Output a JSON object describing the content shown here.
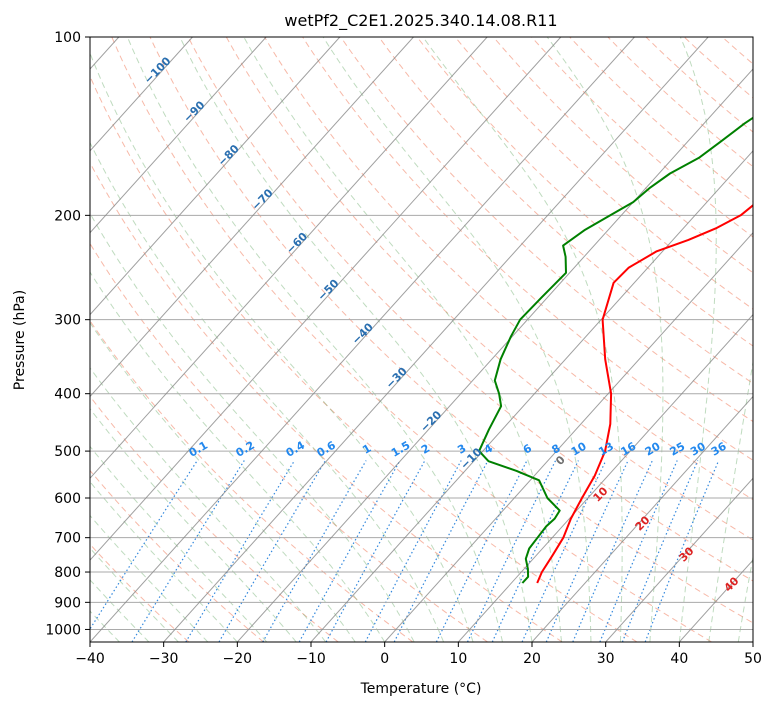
{
  "chart_data": {
    "type": "line",
    "title": "wetPf2_C2E1.2025.340.14.08.R11",
    "xlabel": "Temperature (°C)",
    "ylabel": "Pressure (hPa)",
    "xlim": [
      -40,
      50
    ],
    "ylim": [
      1050,
      100
    ],
    "x_ticks": [
      "−40",
      "−30",
      "−20",
      "−10",
      "0",
      "10",
      "20",
      "30",
      "40",
      "50"
    ],
    "y_ticks": [
      1000,
      900,
      800,
      700,
      600,
      500,
      400,
      300,
      200,
      100
    ],
    "y_tick_labels": [
      "1000",
      "900",
      "800",
      "700",
      "600",
      "500",
      "400",
      "300",
      "200",
      "100"
    ],
    "series": [
      {
        "name": "Temperature",
        "color": "#ff0000",
        "points": [
          [
            13.5,
            835
          ],
          [
            12.8,
            800
          ],
          [
            12.2,
            750
          ],
          [
            11.5,
            700
          ],
          [
            10.2,
            650
          ],
          [
            9.2,
            600
          ],
          [
            8.2,
            550
          ],
          [
            6.6,
            500
          ],
          [
            4.0,
            450
          ],
          [
            0.4,
            400
          ],
          [
            -4.6,
            350
          ],
          [
            -9.8,
            300
          ],
          [
            -12.8,
            260
          ],
          [
            -12.6,
            245
          ],
          [
            -10.8,
            230
          ],
          [
            -7.9,
            220
          ],
          [
            -5.5,
            210
          ],
          [
            -3.8,
            200
          ],
          [
            -3.2,
            190
          ],
          [
            -3.5,
            180
          ],
          [
            -5.5,
            170
          ],
          [
            -6.8,
            160
          ],
          [
            -6.5,
            150
          ],
          [
            -5.2,
            140
          ],
          [
            -3.4,
            130
          ],
          [
            -1.2,
            120
          ],
          [
            1.6,
            110
          ],
          [
            3.3,
            100
          ]
        ]
      },
      {
        "name": "Dewpoint",
        "color": "#008000",
        "points": [
          [
            11.5,
            835
          ],
          [
            11.5,
            815
          ],
          [
            10.5,
            790
          ],
          [
            9.0,
            760
          ],
          [
            8.2,
            730
          ],
          [
            8.0,
            700
          ],
          [
            7.8,
            670
          ],
          [
            8.0,
            650
          ],
          [
            7.7,
            630
          ],
          [
            4.5,
            600
          ],
          [
            1.2,
            560
          ],
          [
            -3.0,
            540
          ],
          [
            -8.0,
            520
          ],
          [
            -10.5,
            500
          ],
          [
            -11.8,
            460
          ],
          [
            -13.0,
            420
          ],
          [
            -14.8,
            400
          ],
          [
            -17.0,
            380
          ],
          [
            -18.8,
            350
          ],
          [
            -20.2,
            320
          ],
          [
            -21.0,
            300
          ],
          [
            -20.8,
            275
          ],
          [
            -20.5,
            250
          ],
          [
            -22.5,
            235
          ],
          [
            -24.2,
            225
          ],
          [
            -23.2,
            212
          ],
          [
            -21.5,
            200
          ],
          [
            -20.0,
            190
          ],
          [
            -19.5,
            180
          ],
          [
            -18.5,
            170
          ],
          [
            -16.5,
            160
          ],
          [
            -15.5,
            150
          ],
          [
            -14.5,
            140
          ],
          [
            -13.0,
            130
          ],
          [
            -10.0,
            120
          ],
          [
            -7.0,
            110
          ],
          [
            -5.5,
            100
          ]
        ]
      }
    ],
    "isotherm_labels": [
      "−100",
      "−90",
      "−80",
      "−70",
      "−60",
      "−50",
      "−40",
      "−30",
      "−20",
      "−10"
    ],
    "mixing_ratio_labels": [
      "0.1",
      "0.2",
      "0.4",
      "0.6",
      "1",
      "1.5",
      "2",
      "3",
      "4",
      "6",
      "8",
      "10",
      "13",
      "16",
      "20",
      "25",
      "30",
      "36"
    ],
    "moist_adiabat_labels": [
      "0",
      "10",
      "20",
      "30",
      "40"
    ],
    "grid": true,
    "colors": {
      "dry_adiabat": "#f08060",
      "moist_adiabat": "#70b070",
      "mixing_ratio": "#3388dd",
      "isotherm": "#888888",
      "isobar": "#aaaaaa",
      "isotherm_label": "#2a6fb0",
      "mix_label": "#2288ee",
      "moist_label_zero": "#707070",
      "moist_label": "#dd2222"
    }
  }
}
